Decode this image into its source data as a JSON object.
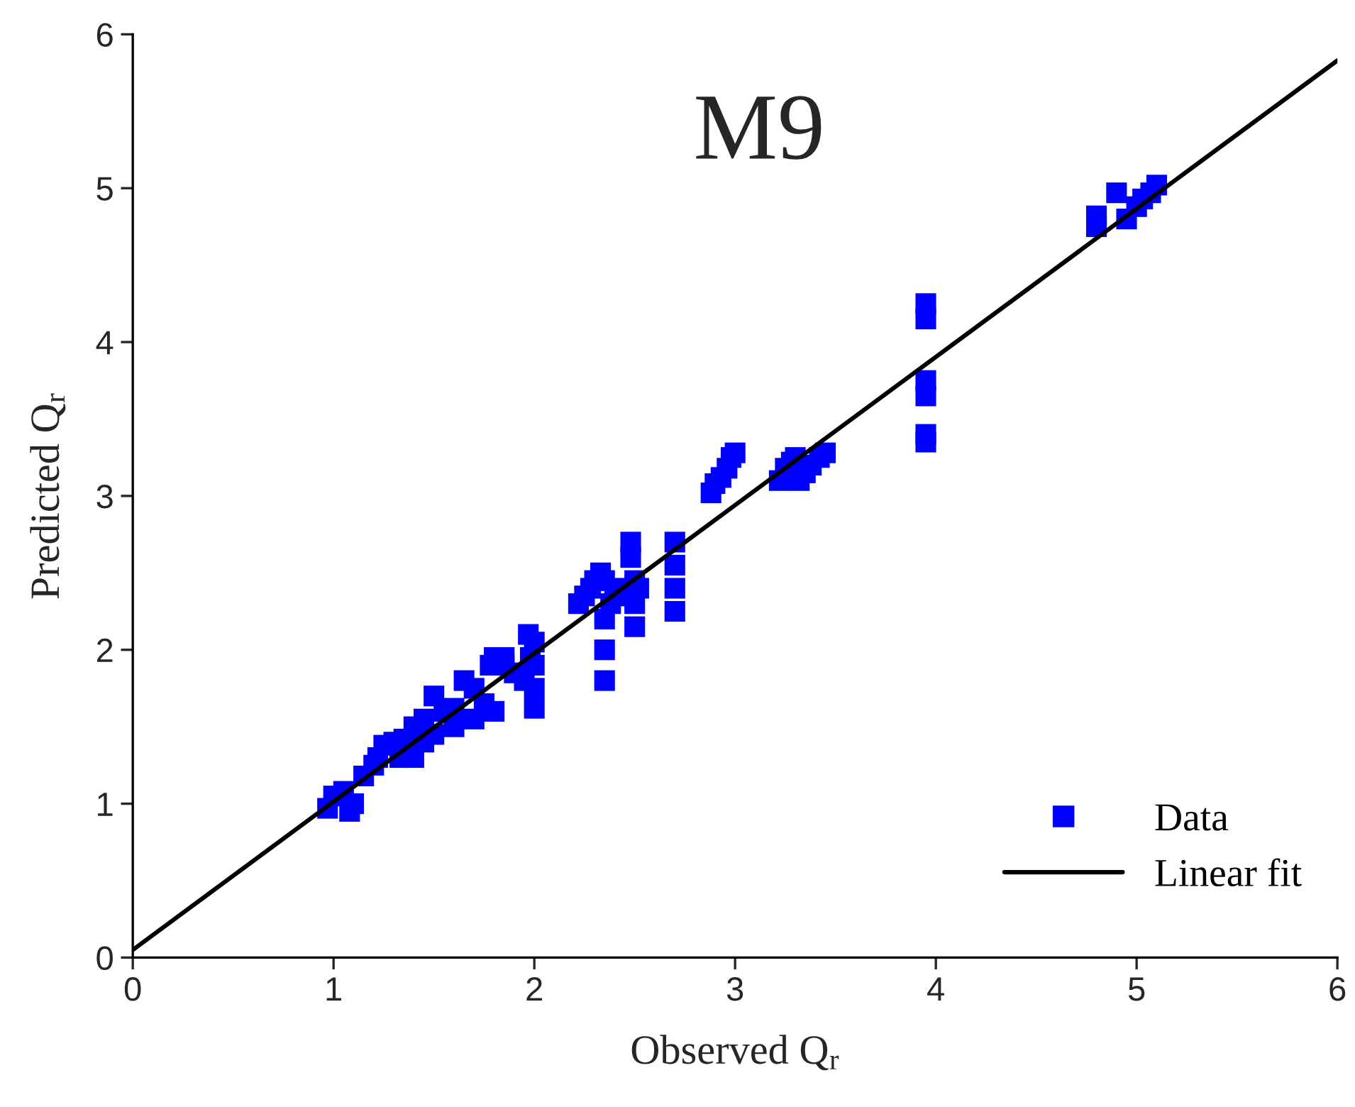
{
  "chart_data": {
    "type": "scatter",
    "title": "M9",
    "xlabel": "Observed Q$_{r}$",
    "ylabel": "Predicted Q$_{r}$",
    "xlim": [
      0,
      6
    ],
    "ylim": [
      0,
      6
    ],
    "xticks": [
      0,
      1,
      2,
      3,
      4,
      5,
      6
    ],
    "yticks": [
      0,
      1,
      2,
      3,
      4,
      5,
      6
    ],
    "grid": false,
    "legend": "bottom right",
    "series": [
      {
        "name": "Data",
        "marker": "square",
        "color": "#0000ff",
        "x": [
          0.97,
          1.0,
          1.05,
          1.08,
          1.1,
          1.15,
          1.2,
          1.22,
          1.25,
          1.3,
          1.33,
          1.35,
          1.4,
          1.4,
          1.45,
          1.45,
          1.5,
          1.5,
          1.55,
          1.6,
          1.6,
          1.65,
          1.7,
          1.7,
          1.75,
          1.78,
          1.8,
          1.8,
          1.85,
          1.85,
          1.9,
          1.95,
          1.97,
          1.98,
          2.0,
          2.0,
          2.0,
          2.0,
          2.22,
          2.25,
          2.28,
          2.3,
          2.33,
          2.35,
          2.35,
          2.35,
          2.35,
          2.38,
          2.4,
          2.45,
          2.48,
          2.48,
          2.5,
          2.5,
          2.5,
          2.52,
          2.7,
          2.7,
          2.7,
          2.7,
          2.88,
          2.9,
          2.93,
          2.96,
          2.98,
          3.0,
          3.22,
          3.25,
          3.28,
          3.3,
          3.32,
          3.35,
          3.38,
          3.42,
          3.45,
          3.95,
          3.95,
          3.95,
          3.95,
          3.95,
          3.95,
          4.8,
          4.8,
          4.9,
          4.95,
          5.0,
          5.03,
          5.07,
          5.1
        ],
        "values": [
          0.97,
          1.05,
          1.08,
          0.95,
          1.0,
          1.18,
          1.25,
          1.3,
          1.38,
          1.4,
          1.3,
          1.42,
          1.5,
          1.3,
          1.55,
          1.4,
          1.7,
          1.45,
          1.6,
          1.62,
          1.5,
          1.8,
          1.75,
          1.55,
          1.65,
          1.9,
          1.95,
          1.6,
          1.9,
          1.95,
          1.85,
          1.8,
          2.1,
          1.95,
          1.75,
          1.62,
          2.05,
          1.9,
          2.3,
          2.35,
          2.4,
          2.45,
          2.5,
          2.45,
          2.2,
          2.0,
          1.8,
          2.3,
          2.4,
          2.35,
          2.6,
          2.7,
          2.45,
          2.3,
          2.15,
          2.4,
          2.7,
          2.55,
          2.4,
          2.25,
          3.02,
          3.08,
          3.12,
          3.18,
          3.25,
          3.28,
          3.1,
          3.18,
          3.22,
          3.25,
          3.1,
          3.15,
          3.2,
          3.25,
          3.28,
          4.25,
          4.15,
          3.75,
          3.65,
          3.4,
          3.35,
          4.75,
          4.82,
          4.97,
          4.8,
          4.88,
          4.93,
          4.97,
          5.02
        ]
      },
      {
        "name": "Linear fit",
        "type": "line",
        "color": "#000000",
        "x": [
          0,
          6
        ],
        "values": [
          0.05,
          5.83
        ]
      }
    ]
  }
}
